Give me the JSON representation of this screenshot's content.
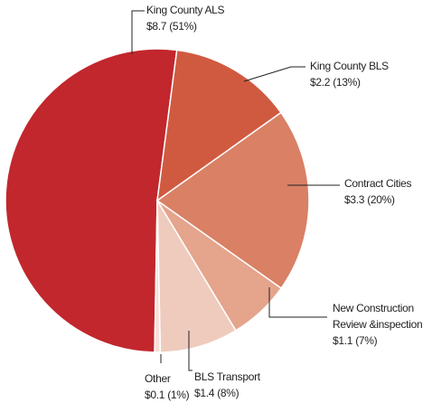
{
  "chart_data": {
    "type": "pie",
    "categories": [
      "King County ALS",
      "King County BLS",
      "Contract Cities",
      "New Construction Review &inspection",
      "BLS Transport",
      "Other"
    ],
    "values": [
      8.7,
      2.2,
      3.3,
      1.1,
      1.4,
      0.1
    ],
    "value_labels": [
      "$8.7 (51%)",
      "$2.2 (13%)",
      "$3.3 (20%)",
      "$1.1 (7%)",
      "$1.4 (8%)",
      "$0.1 (1%)"
    ],
    "colors": [
      "#c1272d",
      "#d05a40",
      "#d98065",
      "#e5a48c",
      "#efcbbd",
      "#f6e1d8"
    ]
  }
}
